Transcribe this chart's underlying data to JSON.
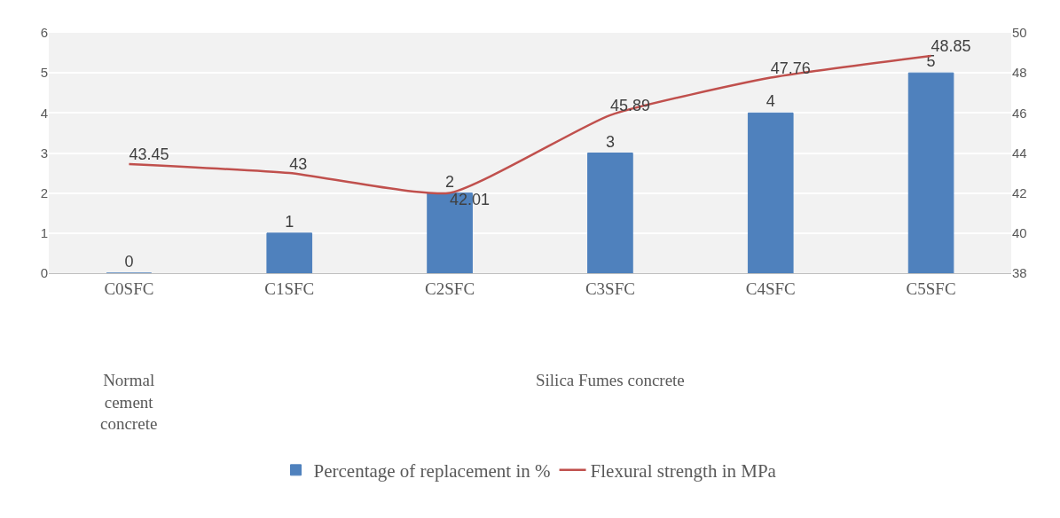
{
  "chart_data": {
    "type": "bar",
    "categories": [
      "C0SFC",
      "C1SFC",
      "C2SFC",
      "C3SFC",
      "C4SFC",
      "C5SFC"
    ],
    "series": [
      {
        "name": "Percentage of replacement in %",
        "color": "#4f81bd",
        "values": [
          0,
          1,
          2,
          3,
          4,
          5
        ]
      },
      {
        "name": "Flexural strength in MPa",
        "type": "line",
        "axis": "y2",
        "color": "#c0504d",
        "values": [
          43.45,
          43,
          42.01,
          45.89,
          47.76,
          48.85
        ]
      }
    ],
    "ylim": [
      0,
      6
    ],
    "yticks": [
      0,
      1,
      2,
      3,
      4,
      5,
      6
    ],
    "y2lim": [
      38,
      50
    ],
    "y2ticks": [
      38,
      40,
      42,
      44,
      46,
      48,
      50
    ],
    "annotations": [
      "Normal cement concrete",
      "Silica Fumes concrete"
    ],
    "data_labels": true,
    "grid": "y",
    "legend": "bottom",
    "marker": "none"
  }
}
